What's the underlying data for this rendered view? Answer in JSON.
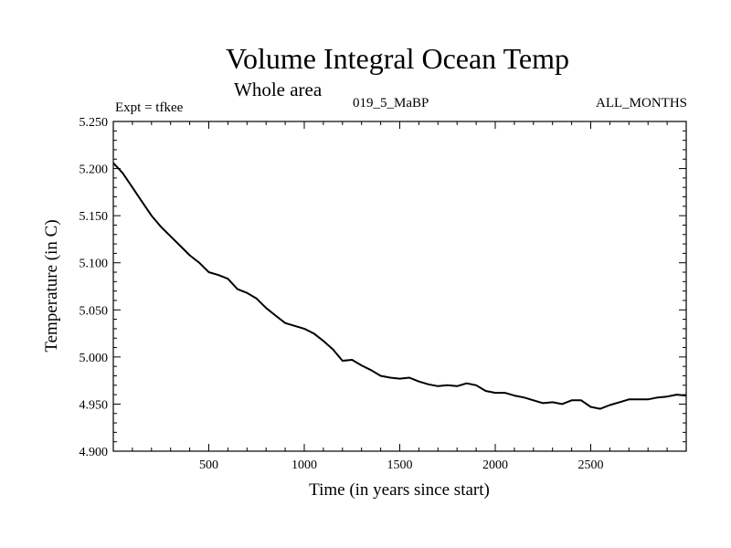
{
  "chart_data": {
    "type": "line",
    "title": "Volume Integral Ocean Temp",
    "subtitle": "Whole area",
    "annotations": {
      "experiment": "Expt = tfkee",
      "run": "019_5_MaBP",
      "months": "ALL_MONTHS"
    },
    "xlabel": "Time (in years since start)",
    "ylabel": "Temperature (in C)",
    "xlim": [
      0,
      3000
    ],
    "ylim": [
      4.9,
      5.25
    ],
    "x_ticks": [
      500,
      1000,
      1500,
      2000,
      2500
    ],
    "x_tick_labels": [
      "500",
      "1000",
      "1500",
      "2000",
      "2500"
    ],
    "y_ticks": [
      4.9,
      4.95,
      5.0,
      5.05,
      5.1,
      5.15,
      5.2,
      5.25
    ],
    "y_tick_labels": [
      "4.900",
      "4.950",
      "5.000",
      "5.050",
      "5.100",
      "5.150",
      "5.200",
      "5.250"
    ],
    "grid": false,
    "series": [
      {
        "color": "#000000",
        "x": [
          0,
          50,
          100,
          150,
          200,
          250,
          300,
          350,
          400,
          450,
          500,
          550,
          600,
          650,
          700,
          750,
          800,
          850,
          900,
          950,
          1000,
          1050,
          1100,
          1150,
          1200,
          1250,
          1300,
          1350,
          1400,
          1450,
          1500,
          1550,
          1600,
          1650,
          1700,
          1750,
          1800,
          1850,
          1900,
          1950,
          2000,
          2050,
          2100,
          2150,
          2200,
          2250,
          2300,
          2350,
          2400,
          2450,
          2500,
          2550,
          2600,
          2650,
          2700,
          2750,
          2800,
          2850,
          2900,
          2950,
          3000
        ],
        "values": [
          5.206,
          5.195,
          5.18,
          5.165,
          5.15,
          5.138,
          5.128,
          5.118,
          5.108,
          5.1,
          5.09,
          5.087,
          5.083,
          5.072,
          5.068,
          5.062,
          5.052,
          5.044,
          5.036,
          5.033,
          5.03,
          5.025,
          5.017,
          5.008,
          4.996,
          4.997,
          4.991,
          4.986,
          4.98,
          4.978,
          4.977,
          4.978,
          4.974,
          4.971,
          4.969,
          4.97,
          4.969,
          4.972,
          4.97,
          4.964,
          4.962,
          4.962,
          4.959,
          4.957,
          4.954,
          4.951,
          4.952,
          4.95,
          4.954,
          4.954,
          4.947,
          4.945,
          4.949,
          4.952,
          4.955,
          4.955,
          4.955,
          4.957,
          4.958,
          4.96,
          4.959
        ]
      }
    ]
  }
}
